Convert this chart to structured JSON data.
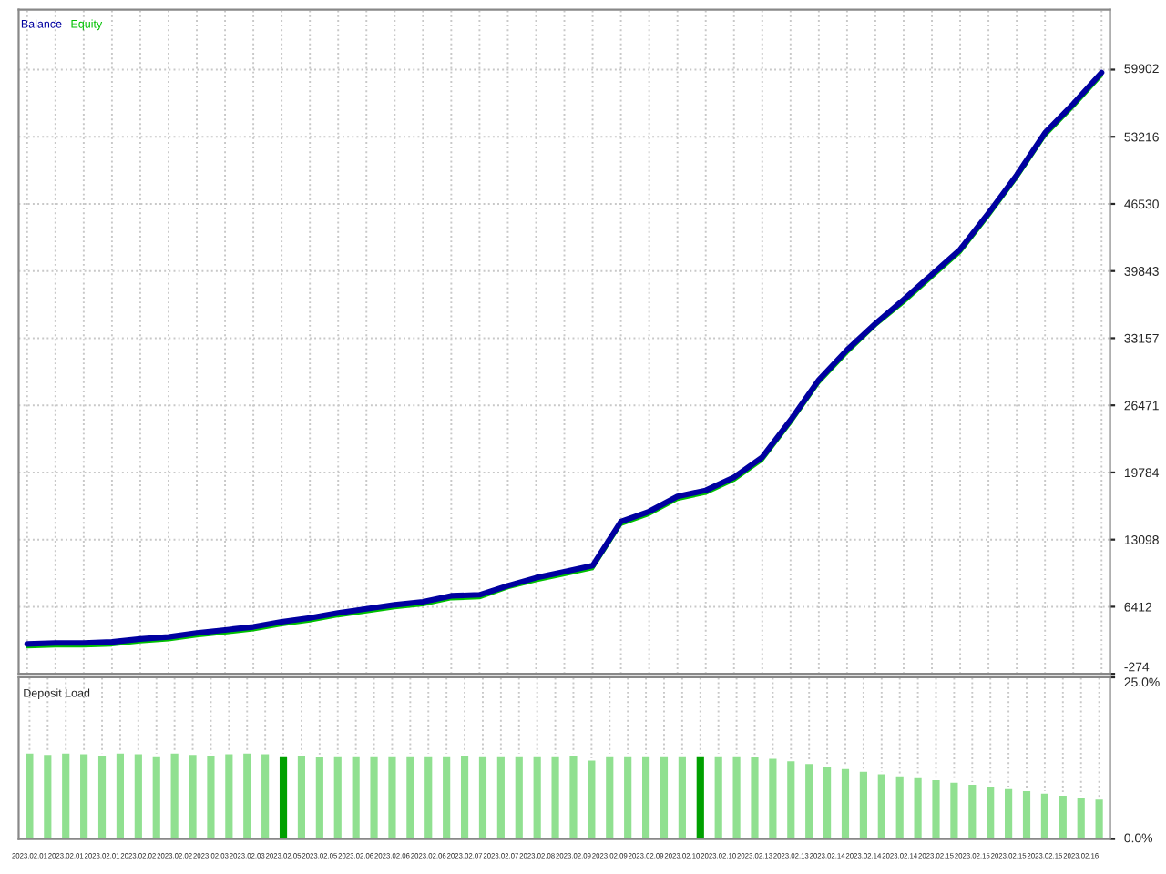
{
  "chart_data": [
    {
      "type": "line",
      "categories": [
        null,
        null,
        null,
        null,
        null,
        null,
        null,
        null,
        null,
        null,
        null,
        null,
        null,
        null,
        null,
        null,
        null,
        null,
        null,
        null,
        null,
        null,
        null,
        null,
        null,
        null,
        null,
        null,
        null,
        null,
        null,
        null,
        null,
        null,
        null,
        null,
        null,
        null,
        null
      ],
      "series": [
        {
          "name": "Balance",
          "color": "#0000a0",
          "values": [
            2700,
            2800,
            2800,
            2900,
            3200,
            3400,
            3800,
            4100,
            4400,
            4900,
            5300,
            5800,
            6200,
            6600,
            6900,
            7500,
            7600,
            8500,
            9300,
            9900,
            10500,
            14900,
            15900,
            17400,
            18000,
            19300,
            21300,
            25000,
            29000,
            32000,
            34600,
            37000,
            39500,
            42000,
            45600,
            49400,
            53600,
            56500,
            59600
          ]
        },
        {
          "name": "Equity",
          "color": "#00c000",
          "values": [
            2400,
            2500,
            2500,
            2600,
            2900,
            3100,
            3500,
            3800,
            4100,
            4600,
            5000,
            5500,
            5900,
            6300,
            6600,
            7200,
            7300,
            8300,
            9000,
            9600,
            10200,
            14600,
            15600,
            17100,
            17700,
            19000,
            21000,
            24700,
            28700,
            31700,
            34400,
            36700,
            39200,
            41700,
            45300,
            49100,
            53300,
            56200,
            59300
          ]
        }
      ],
      "ylim": [
        -274,
        65880
      ],
      "yticks": [
        -274,
        6412,
        13098,
        19784,
        26471,
        33157,
        39843,
        46530,
        53216,
        59902
      ],
      "grid": true,
      "tick_labels": "y",
      "legend": "top left"
    },
    {
      "type": "bar",
      "title": "Deposit Load",
      "categories": [
        "2023.02.01",
        null,
        "2023.02.01",
        null,
        "2023.02.01",
        null,
        "2023.02.02",
        null,
        "2023.02.02",
        null,
        "2023.02.03",
        null,
        "2023.02.03",
        null,
        "2023.02.05",
        null,
        "2023.02.05",
        null,
        "2023.02.06",
        null,
        "2023.02.06",
        null,
        "2023.02.06",
        null,
        "2023.02.07",
        null,
        "2023.02.07",
        null,
        "2023.02.08",
        null,
        "2023.02.09",
        null,
        "2023.02.09",
        null,
        "2023.02.09",
        null,
        "2023.02.10",
        null,
        "2023.02.10",
        null,
        "2023.02.13",
        null,
        "2023.02.13",
        null,
        "2023.02.14",
        null,
        "2023.02.14",
        null,
        "2023.02.14",
        null,
        "2023.02.15",
        null,
        "2023.02.15",
        null,
        "2023.02.15",
        null,
        "2023.02.15",
        null,
        "2023.02.16",
        null
      ],
      "values": [
        13.4,
        13.2,
        13.4,
        13.3,
        13.1,
        13.4,
        13.3,
        13.0,
        13.4,
        13.2,
        13.1,
        13.3,
        13.4,
        13.3,
        13.0,
        13.1,
        12.8,
        13.0,
        13.0,
        13.0,
        13.0,
        13.0,
        13.0,
        13.0,
        13.1,
        13.0,
        13.0,
        13.0,
        13.0,
        13.0,
        13.1,
        12.3,
        13.0,
        13.0,
        13.0,
        13.0,
        13.0,
        13.0,
        13.0,
        13.0,
        12.8,
        12.6,
        12.2,
        11.8,
        11.4,
        11.0,
        10.6,
        10.2,
        9.9,
        9.6,
        9.3,
        8.9,
        8.6,
        8.3,
        7.9,
        7.6,
        7.2,
        6.9,
        6.6,
        6.3
      ],
      "colors": [
        "#90e090",
        "#90e090",
        "#90e090",
        "#90e090",
        "#90e090",
        "#90e090",
        "#90e090",
        "#90e090",
        "#90e090",
        "#90e090",
        "#90e090",
        "#90e090",
        "#90e090",
        "#90e090",
        "#00a000",
        "#90e090",
        "#90e090",
        "#90e090",
        "#90e090",
        "#90e090",
        "#90e090",
        "#90e090",
        "#90e090",
        "#90e090",
        "#90e090",
        "#90e090",
        "#90e090",
        "#90e090",
        "#90e090",
        "#90e090",
        "#90e090",
        "#90e090",
        "#90e090",
        "#90e090",
        "#90e090",
        "#90e090",
        "#90e090",
        "#00a000",
        "#90e090",
        "#90e090",
        "#90e090",
        "#90e090",
        "#90e090",
        "#90e090",
        "#90e090",
        "#90e090",
        "#90e090",
        "#90e090",
        "#90e090",
        "#90e090",
        "#90e090",
        "#90e090",
        "#90e090",
        "#90e090",
        "#90e090",
        "#90e090",
        "#90e090",
        "#90e090",
        "#90e090",
        "#90e090"
      ],
      "ylim": [
        0,
        25
      ],
      "yticks": [
        {
          "value": 0,
          "label": "0.0%"
        },
        {
          "value": 25,
          "label": "25.0%"
        }
      ],
      "grid": true
    }
  ]
}
